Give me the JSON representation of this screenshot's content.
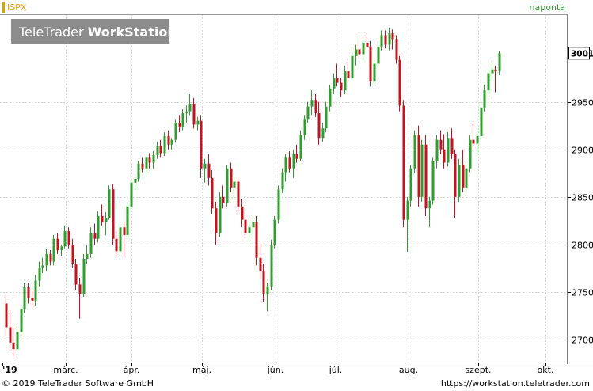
{
  "header": {
    "symbol": "ISPX",
    "interval": "naponta",
    "watermark_prefix": "TeleTrader ",
    "watermark_bold": "WorkStation"
  },
  "footer": {
    "copyright": "© 2019 TeleTrader Software GmbH",
    "url": "https://workstation.teletrader.com"
  },
  "colors": {
    "up": "#2e9e2e",
    "down": "#c0141e",
    "grid": "#d7d7d7",
    "symbol": "#e0a000",
    "interval": "#2e9e2e"
  },
  "chart_data": {
    "type": "candlestick",
    "symbol": "ISPX",
    "y_ticks": [
      2700,
      2750,
      2800,
      2850,
      2900,
      2950
    ],
    "last_price_label": "3001",
    "last_price": 3001,
    "x_labels": [
      "'19",
      "márc.",
      "ápr.",
      "máj.",
      "jún.",
      "júl.",
      "aug.",
      "szept.",
      "okt."
    ],
    "ylim": [
      2676,
      3042
    ],
    "candles": [
      [
        2738,
        2748,
        2704,
        2713
      ],
      [
        2713,
        2730,
        2690,
        2697
      ],
      [
        2697,
        2713,
        2682,
        2690
      ],
      [
        2690,
        2712,
        2688,
        2708
      ],
      [
        2708,
        2735,
        2702,
        2732
      ],
      [
        2732,
        2760,
        2728,
        2755
      ],
      [
        2755,
        2760,
        2738,
        2744
      ],
      [
        2744,
        2752,
        2735,
        2741
      ],
      [
        2741,
        2768,
        2736,
        2762
      ],
      [
        2762,
        2782,
        2756,
        2776
      ],
      [
        2776,
        2786,
        2770,
        2778
      ],
      [
        2778,
        2795,
        2772,
        2790
      ],
      [
        2790,
        2794,
        2778,
        2782
      ],
      [
        2782,
        2810,
        2778,
        2806
      ],
      [
        2806,
        2812,
        2790,
        2794
      ],
      [
        2794,
        2800,
        2788,
        2798
      ],
      [
        2798,
        2820,
        2796,
        2814
      ],
      [
        2814,
        2818,
        2796,
        2800
      ],
      [
        2800,
        2806,
        2775,
        2780
      ],
      [
        2780,
        2785,
        2752,
        2758
      ],
      [
        2758,
        2765,
        2722,
        2748
      ],
      [
        2748,
        2790,
        2745,
        2785
      ],
      [
        2785,
        2800,
        2780,
        2790
      ],
      [
        2790,
        2818,
        2786,
        2812
      ],
      [
        2812,
        2822,
        2800,
        2806
      ],
      [
        2806,
        2835,
        2802,
        2830
      ],
      [
        2830,
        2842,
        2820,
        2824
      ],
      [
        2824,
        2834,
        2810,
        2828
      ],
      [
        2828,
        2862,
        2826,
        2858
      ],
      [
        2858,
        2864,
        2800,
        2806
      ],
      [
        2806,
        2815,
        2788,
        2793
      ],
      [
        2793,
        2822,
        2790,
        2818
      ],
      [
        2818,
        2824,
        2786,
        2810
      ],
      [
        2810,
        2845,
        2806,
        2840
      ],
      [
        2840,
        2868,
        2836,
        2865
      ],
      [
        2865,
        2872,
        2858,
        2869
      ],
      [
        2869,
        2888,
        2866,
        2885
      ],
      [
        2885,
        2892,
        2876,
        2880
      ],
      [
        2880,
        2895,
        2874,
        2892
      ],
      [
        2892,
        2896,
        2880,
        2886
      ],
      [
        2886,
        2898,
        2880,
        2894
      ],
      [
        2894,
        2908,
        2890,
        2904
      ],
      [
        2904,
        2910,
        2892,
        2896
      ],
      [
        2896,
        2918,
        2893,
        2914
      ],
      [
        2914,
        2920,
        2900,
        2905
      ],
      [
        2905,
        2912,
        2900,
        2910
      ],
      [
        2910,
        2932,
        2907,
        2928
      ],
      [
        2928,
        2936,
        2918,
        2924
      ],
      [
        2924,
        2942,
        2920,
        2938
      ],
      [
        2938,
        2946,
        2928,
        2940
      ],
      [
        2940,
        2958,
        2936,
        2948
      ],
      [
        2948,
        2954,
        2922,
        2926
      ],
      [
        2926,
        2934,
        2920,
        2930
      ],
      [
        2930,
        2936,
        2870,
        2880
      ],
      [
        2880,
        2890,
        2865,
        2885
      ],
      [
        2885,
        2895,
        2862,
        2870
      ],
      [
        2870,
        2878,
        2832,
        2838
      ],
      [
        2838,
        2845,
        2800,
        2812
      ],
      [
        2812,
        2855,
        2808,
        2850
      ],
      [
        2850,
        2862,
        2838,
        2844
      ],
      [
        2844,
        2884,
        2840,
        2880
      ],
      [
        2880,
        2886,
        2855,
        2860
      ],
      [
        2860,
        2872,
        2845,
        2866
      ],
      [
        2866,
        2870,
        2834,
        2840
      ],
      [
        2840,
        2848,
        2818,
        2826
      ],
      [
        2826,
        2836,
        2808,
        2812
      ],
      [
        2812,
        2824,
        2800,
        2818
      ],
      [
        2818,
        2830,
        2808,
        2824
      ],
      [
        2824,
        2830,
        2778,
        2786
      ],
      [
        2786,
        2800,
        2764,
        2772
      ],
      [
        2772,
        2780,
        2740,
        2748
      ],
      [
        2748,
        2760,
        2730,
        2756
      ],
      [
        2756,
        2805,
        2752,
        2800
      ],
      [
        2800,
        2830,
        2796,
        2826
      ],
      [
        2826,
        2862,
        2822,
        2858
      ],
      [
        2858,
        2880,
        2854,
        2876
      ],
      [
        2876,
        2895,
        2866,
        2892
      ],
      [
        2892,
        2898,
        2876,
        2880
      ],
      [
        2880,
        2900,
        2870,
        2895
      ],
      [
        2895,
        2905,
        2886,
        2890
      ],
      [
        2890,
        2920,
        2888,
        2915
      ],
      [
        2915,
        2936,
        2910,
        2932
      ],
      [
        2932,
        2950,
        2928,
        2945
      ],
      [
        2945,
        2962,
        2936,
        2952
      ],
      [
        2952,
        2958,
        2934,
        2938
      ],
      [
        2938,
        2950,
        2905,
        2912
      ],
      [
        2912,
        2928,
        2908,
        2922
      ],
      [
        2922,
        2950,
        2918,
        2945
      ],
      [
        2945,
        2968,
        2940,
        2964
      ],
      [
        2964,
        2980,
        2958,
        2975
      ],
      [
        2975,
        2990,
        2966,
        2970
      ],
      [
        2970,
        2975,
        2955,
        2962
      ],
      [
        2962,
        2988,
        2958,
        2982
      ],
      [
        2982,
        2992,
        2970,
        2975
      ],
      [
        2975,
        3005,
        2972,
        2998
      ],
      [
        2998,
        3010,
        2988,
        3005
      ],
      [
        3005,
        3018,
        2995,
        3000
      ],
      [
        3000,
        3016,
        2992,
        3012
      ],
      [
        3012,
        3022,
        3005,
        3008
      ],
      [
        3008,
        3014,
        2966,
        2972
      ],
      [
        2972,
        2994,
        2968,
        2990
      ],
      [
        2990,
        3012,
        2985,
        3008
      ],
      [
        3008,
        3025,
        3004,
        3020
      ],
      [
        3020,
        3025,
        3006,
        3010
      ],
      [
        3010,
        3028,
        3004,
        3022
      ],
      [
        3022,
        3026,
        3005,
        3016
      ],
      [
        3016,
        3020,
        2990,
        2994
      ],
      [
        2994,
        2998,
        2940,
        2946
      ],
      [
        2946,
        2952,
        2818,
        2826
      ],
      [
        2826,
        2850,
        2792,
        2846
      ],
      [
        2846,
        2884,
        2840,
        2880
      ],
      [
        2880,
        2920,
        2875,
        2915
      ],
      [
        2915,
        2925,
        2840,
        2850
      ],
      [
        2850,
        2910,
        2845,
        2905
      ],
      [
        2905,
        2915,
        2830,
        2838
      ],
      [
        2838,
        2850,
        2818,
        2846
      ],
      [
        2846,
        2892,
        2842,
        2888
      ],
      [
        2888,
        2915,
        2880,
        2910
      ],
      [
        2910,
        2920,
        2895,
        2900
      ],
      [
        2900,
        2916,
        2880,
        2886
      ],
      [
        2886,
        2918,
        2882,
        2912
      ],
      [
        2912,
        2922,
        2890,
        2895
      ],
      [
        2895,
        2900,
        2828,
        2850
      ],
      [
        2850,
        2890,
        2845,
        2884
      ],
      [
        2884,
        2900,
        2855,
        2860
      ],
      [
        2860,
        2885,
        2856,
        2880
      ],
      [
        2880,
        2915,
        2876,
        2910
      ],
      [
        2910,
        2928,
        2900,
        2906
      ],
      [
        2906,
        2920,
        2894,
        2914
      ],
      [
        2914,
        2948,
        2910,
        2944
      ],
      [
        2944,
        2968,
        2940,
        2962
      ],
      [
        2962,
        2985,
        2955,
        2980
      ],
      [
        2980,
        2992,
        2972,
        2984
      ],
      [
        2984,
        2988,
        2960,
        2982
      ],
      [
        2982,
        3003,
        2978,
        3001
      ]
    ]
  }
}
